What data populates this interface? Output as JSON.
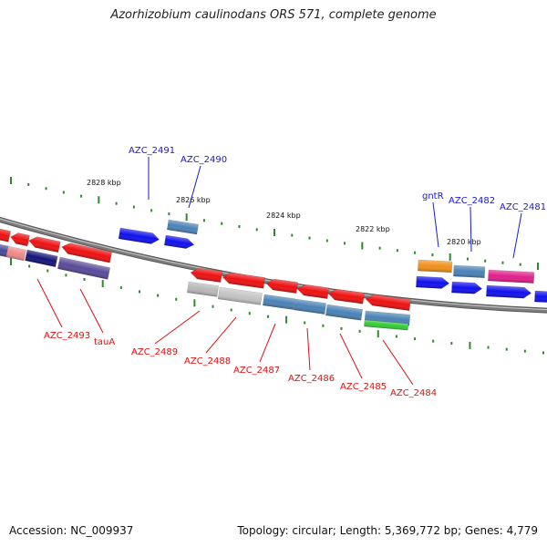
{
  "title": "Azorhizobium caulinodans ORS 571, complete genome",
  "footer": {
    "accession": "Accession: NC_009937",
    "summary": "Topology: circular; Length: 5,369,772 bp; Genes: 4,779"
  },
  "colors": {
    "backbone": "#7d7d7d",
    "tick": "#2c8a2c",
    "label_forward": "#1a1acc",
    "label_reverse": "#dd1111"
  },
  "scale_labels": [
    "2828 kbp",
    "2826 kbp",
    "2824 kbp",
    "2822 kbp",
    "2820 kbp"
  ],
  "genes": [
    {
      "id": "AZC_2491",
      "label": "AZC_2491",
      "color": "#1010ee",
      "strand": "+"
    },
    {
      "id": "AZC_2490",
      "label": "AZC_2490",
      "color": "#1010ee",
      "strand": "+"
    },
    {
      "id": "AZC_2490b",
      "label": "",
      "color": "#4a82b6",
      "strand": "+"
    },
    {
      "id": "gntR",
      "label": "gntR",
      "color": "#f0901a",
      "strand": "+"
    },
    {
      "id": "AZC_2482",
      "label": "AZC_2482",
      "color": "#4a82b6",
      "strand": "+"
    },
    {
      "id": "AZC_2481",
      "label": "AZC_2481",
      "color": "#e0208c",
      "strand": "+"
    },
    {
      "id": "AZC_2493",
      "label": "AZC_2493",
      "color": "#ee1111",
      "strand": "-"
    },
    {
      "id": "tauA",
      "label": "tauA",
      "color": "#ee1111",
      "strand": "-"
    },
    {
      "id": "AZC_2489",
      "label": "AZC_2489",
      "color": "#ee1111",
      "strand": "-"
    },
    {
      "id": "AZC_2488",
      "label": "AZC_2488",
      "color": "#ee1111",
      "strand": "-"
    },
    {
      "id": "AZC_2487",
      "label": "AZC_2487",
      "color": "#ee1111",
      "strand": "-"
    },
    {
      "id": "AZC_2486",
      "label": "AZC_2486",
      "color": "#ee1111",
      "strand": "-"
    },
    {
      "id": "AZC_2485",
      "label": "AZC_2485",
      "color": "#ee1111",
      "strand": "-"
    },
    {
      "id": "AZC_2484",
      "label": "AZC_2484",
      "color": "#ee1111",
      "strand": "-"
    }
  ]
}
